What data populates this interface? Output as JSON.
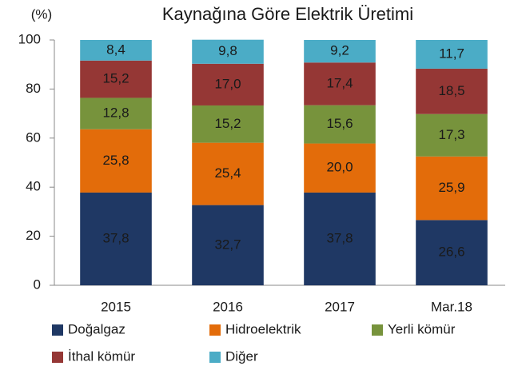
{
  "chart_data": {
    "type": "stacked_bar",
    "title": "Kaynağına Göre Elektrik Üretimi",
    "y_label": "(%)",
    "categories": [
      "2015",
      "2016",
      "2017",
      "Mar.18"
    ],
    "series": [
      {
        "name": "Doğalgaz",
        "color": "#1f3864",
        "label_color": "#ffffff",
        "values": [
          37.8,
          32.7,
          37.8,
          26.6
        ],
        "value_labels": [
          "37,8",
          "32,7",
          "37,8",
          "26,6"
        ]
      },
      {
        "name": "Hidroelektrik",
        "color": "#e36c0a",
        "label_color": "#1a1a1a",
        "values": [
          25.8,
          25.4,
          20.0,
          25.9
        ],
        "value_labels": [
          "25,8",
          "25,4",
          "20,0",
          "25,9"
        ]
      },
      {
        "name": "Yerli kömür",
        "color": "#77933c",
        "label_color": "#1a1a1a",
        "values": [
          12.8,
          15.2,
          15.6,
          17.3
        ],
        "value_labels": [
          "12,8",
          "15,2",
          "15,6",
          "17,3"
        ]
      },
      {
        "name": "İthal kömür",
        "color": "#953735",
        "label_color": "#ffffff",
        "values": [
          15.2,
          17.0,
          17.4,
          18.5
        ],
        "value_labels": [
          "15,2",
          "17,0",
          "17,4",
          "18,5"
        ]
      },
      {
        "name": "Diğer",
        "color": "#4bacc6",
        "label_color": "#1a1a1a",
        "values": [
          8.4,
          9.8,
          9.2,
          11.7
        ],
        "value_labels": [
          "8,4",
          "9,8",
          "9,2",
          "11,7"
        ]
      }
    ],
    "ylim": [
      0,
      100
    ],
    "yticks": [
      0,
      20,
      40,
      60,
      80,
      100
    ],
    "grid": false,
    "legend": "bottom"
  }
}
